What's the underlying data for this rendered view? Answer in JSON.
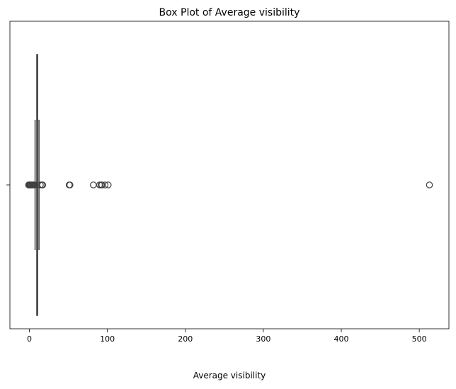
{
  "chart_data": {
    "type": "box",
    "orientation": "horizontal",
    "title": "Box Plot of Average visibility",
    "xlabel": "Average visibility",
    "ylabel": "",
    "xlim": [
      -25,
      538
    ],
    "x_ticks": [
      0,
      100,
      200,
      300,
      400,
      500
    ],
    "x_tick_labels": [
      "0",
      "100",
      "200",
      "300",
      "400",
      "500"
    ],
    "grid": false,
    "box": {
      "whisker_low": 7.3,
      "q1": 9.5,
      "median": 10.2,
      "q3": 10.5,
      "whisker_high": 12.3
    },
    "outliers": [
      -1,
      0,
      0.5,
      1,
      2,
      3,
      4,
      5,
      6,
      7,
      14,
      16,
      17,
      51,
      52,
      82,
      90,
      92,
      93,
      97,
      101,
      513
    ],
    "colors": {
      "box_fill": "#3b75af",
      "line": "#3f3f3f",
      "outlier_edge": "#3f3f3f"
    }
  }
}
